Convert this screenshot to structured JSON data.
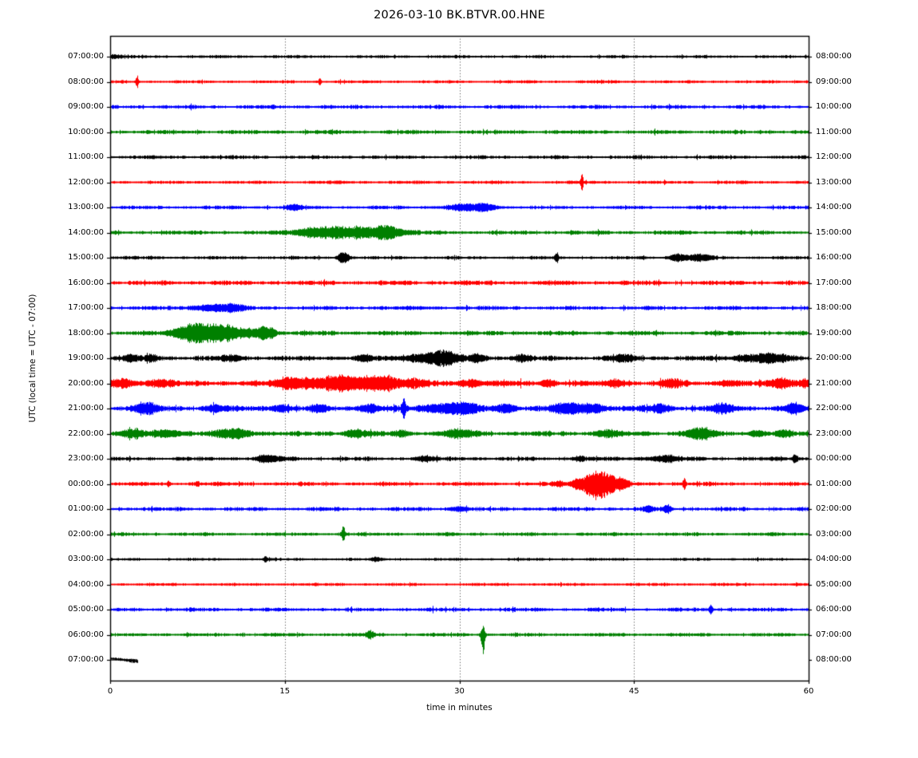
{
  "title": "2026-03-10 BK.BTVR.00.HNE",
  "xlabel": "time in minutes",
  "ylabel": "UTC (local time = UTC - 07:00)",
  "chart_data": {
    "type": "line",
    "variant": "helicorder_dayplot",
    "title": "2026-03-10 BK.BTVR.00.HNE",
    "xlabel": "time in minutes",
    "ylabel": "UTC (local time = UTC - 07:00)",
    "x_range_minutes": [
      0,
      60
    ],
    "x_ticks": [
      0,
      15,
      30,
      45,
      60
    ],
    "grid_minutes": [
      15,
      30,
      45
    ],
    "grid_style": "dotted",
    "minutes_per_row": 60,
    "colors_cycle": [
      "#000000",
      "#ff0000",
      "#0000ff",
      "#008000"
    ],
    "rows": [
      {
        "left_label": "07:00:00",
        "right_label": "08:00:00",
        "color": "#000000",
        "base_amp": 1.3,
        "events": [
          [
            0.4,
            0.5,
            1.5
          ]
        ]
      },
      {
        "left_label": "08:00:00",
        "right_label": "09:00:00",
        "color": "#ff0000",
        "base_amp": 1.3,
        "events": [
          [
            2.3,
            0.08,
            7
          ],
          [
            18.0,
            0.08,
            4
          ]
        ]
      },
      {
        "left_label": "09:00:00",
        "right_label": "10:00:00",
        "color": "#0000ff",
        "base_amp": 1.6,
        "events": []
      },
      {
        "left_label": "10:00:00",
        "right_label": "11:00:00",
        "color": "#008000",
        "base_amp": 1.7,
        "events": []
      },
      {
        "left_label": "11:00:00",
        "right_label": "12:00:00",
        "color": "#000000",
        "base_amp": 1.5,
        "events": []
      },
      {
        "left_label": "12:00:00",
        "right_label": "13:00:00",
        "color": "#ff0000",
        "base_amp": 1.4,
        "events": [
          [
            40.5,
            0.07,
            9
          ]
        ]
      },
      {
        "left_label": "13:00:00",
        "right_label": "14:00:00",
        "color": "#0000ff",
        "base_amp": 1.5,
        "events": [
          [
            15.8,
            0.5,
            2.5
          ],
          [
            30.6,
            1.2,
            3
          ],
          [
            32.4,
            0.6,
            2.5
          ]
        ]
      },
      {
        "left_label": "14:00:00",
        "right_label": "15:00:00",
        "color": "#008000",
        "base_amp": 1.7,
        "events": [
          [
            17.8,
            1.6,
            4.5
          ],
          [
            21.8,
            2.2,
            5
          ],
          [
            23.8,
            0.8,
            4
          ]
        ]
      },
      {
        "left_label": "15:00:00",
        "right_label": "16:00:00",
        "color": "#000000",
        "base_amp": 1.4,
        "events": [
          [
            20.0,
            0.35,
            6
          ],
          [
            38.3,
            0.12,
            4.5
          ],
          [
            48.7,
            0.5,
            3.5
          ],
          [
            50.6,
            0.8,
            3.5
          ]
        ]
      },
      {
        "left_label": "16:00:00",
        "right_label": "17:00:00",
        "color": "#ff0000",
        "base_amp": 1.9,
        "events": []
      },
      {
        "left_label": "17:00:00",
        "right_label": "18:00:00",
        "color": "#0000ff",
        "base_amp": 1.7,
        "events": [
          [
            8.8,
            1.2,
            3.5
          ],
          [
            10.6,
            0.6,
            2.5
          ]
        ]
      },
      {
        "left_label": "18:00:00",
        "right_label": "19:00:00",
        "color": "#008000",
        "base_amp": 1.9,
        "events": [
          [
            6.8,
            1.0,
            8
          ],
          [
            8.4,
            1.0,
            7
          ],
          [
            10.0,
            0.8,
            5
          ],
          [
            11.8,
            1.2,
            3.5
          ],
          [
            13.4,
            0.5,
            6
          ]
        ]
      },
      {
        "left_label": "19:00:00",
        "right_label": "20:00:00",
        "color": "#000000",
        "base_amp": 2.1,
        "events": [
          [
            1.8,
            0.4,
            3
          ],
          [
            3.6,
            0.4,
            3
          ],
          [
            10.5,
            0.6,
            2.5
          ],
          [
            21.8,
            0.5,
            3
          ],
          [
            27.5,
            1.5,
            4.5
          ],
          [
            28.8,
            0.8,
            4
          ],
          [
            31.6,
            0.5,
            4
          ],
          [
            35.3,
            0.6,
            2.5
          ],
          [
            44.0,
            0.8,
            2.5
          ],
          [
            55.3,
            1.2,
            3.5
          ],
          [
            57.2,
            0.8,
            3
          ]
        ]
      },
      {
        "left_label": "20:00:00",
        "right_label": "21:00:00",
        "color": "#ff0000",
        "base_amp": 2.4,
        "events": [
          [
            1.2,
            0.6,
            4
          ],
          [
            4.2,
            0.8,
            3
          ],
          [
            15.2,
            0.8,
            5
          ],
          [
            17.6,
            1.2,
            5
          ],
          [
            20.1,
            1.0,
            7
          ],
          [
            22.6,
            0.9,
            6
          ],
          [
            23.9,
            0.7,
            5.5
          ],
          [
            26.0,
            0.8,
            3.5
          ],
          [
            31.0,
            0.8,
            3
          ],
          [
            37.6,
            0.5,
            3
          ],
          [
            43.4,
            0.5,
            3.5
          ],
          [
            48.3,
            0.6,
            3.5
          ],
          [
            53.0,
            0.5,
            2.5
          ],
          [
            57.7,
            0.7,
            5
          ],
          [
            59.6,
            0.3,
            4
          ]
        ]
      },
      {
        "left_label": "21:00:00",
        "right_label": "22:00:00",
        "color": "#0000ff",
        "base_amp": 2.4,
        "events": [
          [
            3.1,
            0.7,
            5
          ],
          [
            9.0,
            0.5,
            3
          ],
          [
            14.6,
            0.5,
            3.5
          ],
          [
            18.0,
            0.5,
            3
          ],
          [
            22.2,
            0.7,
            3.5
          ],
          [
            25.2,
            0.12,
            10
          ],
          [
            28.6,
            1.2,
            4.5
          ],
          [
            30.6,
            0.7,
            4
          ],
          [
            34.0,
            0.7,
            3.5
          ],
          [
            39.6,
            1.2,
            5
          ],
          [
            41.8,
            0.6,
            3.5
          ],
          [
            47.2,
            0.7,
            3.5
          ],
          [
            52.6,
            0.7,
            3.5
          ],
          [
            58.6,
            0.5,
            4.5
          ]
        ]
      },
      {
        "left_label": "22:00:00",
        "right_label": "23:00:00",
        "color": "#008000",
        "base_amp": 2.1,
        "events": [
          [
            1.9,
            0.7,
            3.5
          ],
          [
            5.0,
            1.0,
            3.5
          ],
          [
            10.6,
            1.1,
            4.5
          ],
          [
            21.2,
            0.7,
            3.5
          ],
          [
            25.0,
            0.5,
            2.5
          ],
          [
            30.0,
            1.1,
            3.5
          ],
          [
            42.6,
            0.7,
            3.5
          ],
          [
            50.6,
            0.9,
            5
          ],
          [
            55.5,
            0.6,
            2.5
          ],
          [
            58.0,
            0.5,
            2.5
          ]
        ]
      },
      {
        "left_label": "23:00:00",
        "right_label": "00:00:00",
        "color": "#000000",
        "base_amp": 1.7,
        "events": [
          [
            13.6,
            0.8,
            3.5
          ],
          [
            27.0,
            0.6,
            2.5
          ],
          [
            40.2,
            0.4,
            2.5
          ],
          [
            47.6,
            1.0,
            3
          ],
          [
            58.8,
            0.15,
            5.5
          ]
        ]
      },
      {
        "left_label": "00:00:00",
        "right_label": "01:00:00",
        "color": "#ff0000",
        "base_amp": 1.7,
        "events": [
          [
            5.0,
            0.1,
            2.5
          ],
          [
            7.5,
            0.1,
            2.5
          ],
          [
            38.5,
            0.3,
            2.5
          ],
          [
            40.0,
            0.3,
            3
          ],
          [
            41.6,
            0.8,
            13,
            1,
            1.25
          ],
          [
            42.9,
            0.5,
            7
          ],
          [
            44.0,
            0.4,
            4.5
          ],
          [
            49.3,
            0.1,
            5.5
          ]
        ]
      },
      {
        "left_label": "01:00:00",
        "right_label": "02:00:00",
        "color": "#0000ff",
        "base_amp": 1.7,
        "events": [
          [
            30.0,
            0.5,
            2.5
          ],
          [
            46.3,
            0.3,
            3
          ],
          [
            47.8,
            0.25,
            4
          ]
        ]
      },
      {
        "left_label": "02:00:00",
        "right_label": "03:00:00",
        "color": "#008000",
        "base_amp": 1.5,
        "events": [
          [
            20.0,
            0.1,
            8,
            1.1,
            0.9
          ]
        ]
      },
      {
        "left_label": "03:00:00",
        "right_label": "04:00:00",
        "color": "#000000",
        "base_amp": 1.2,
        "events": [
          [
            13.3,
            0.1,
            2.5
          ],
          [
            22.8,
            0.3,
            2
          ]
        ]
      },
      {
        "left_label": "04:00:00",
        "right_label": "05:00:00",
        "color": "#ff0000",
        "base_amp": 1.3,
        "events": []
      },
      {
        "left_label": "05:00:00",
        "right_label": "06:00:00",
        "color": "#0000ff",
        "base_amp": 1.6,
        "events": [
          [
            51.6,
            0.12,
            4.5
          ]
        ]
      },
      {
        "left_label": "06:00:00",
        "right_label": "07:00:00",
        "color": "#008000",
        "base_amp": 1.5,
        "events": [
          [
            22.3,
            0.25,
            3.5
          ],
          [
            32.0,
            0.12,
            14,
            0.65,
            1.5
          ]
        ]
      },
      {
        "left_label": "07:00:00",
        "right_label": "08:00:00",
        "color": "#000000",
        "base_amp": 1.6,
        "events": [],
        "extent": [
          0,
          2.3
        ],
        "drift": [
          2,
          -2
        ]
      }
    ]
  }
}
